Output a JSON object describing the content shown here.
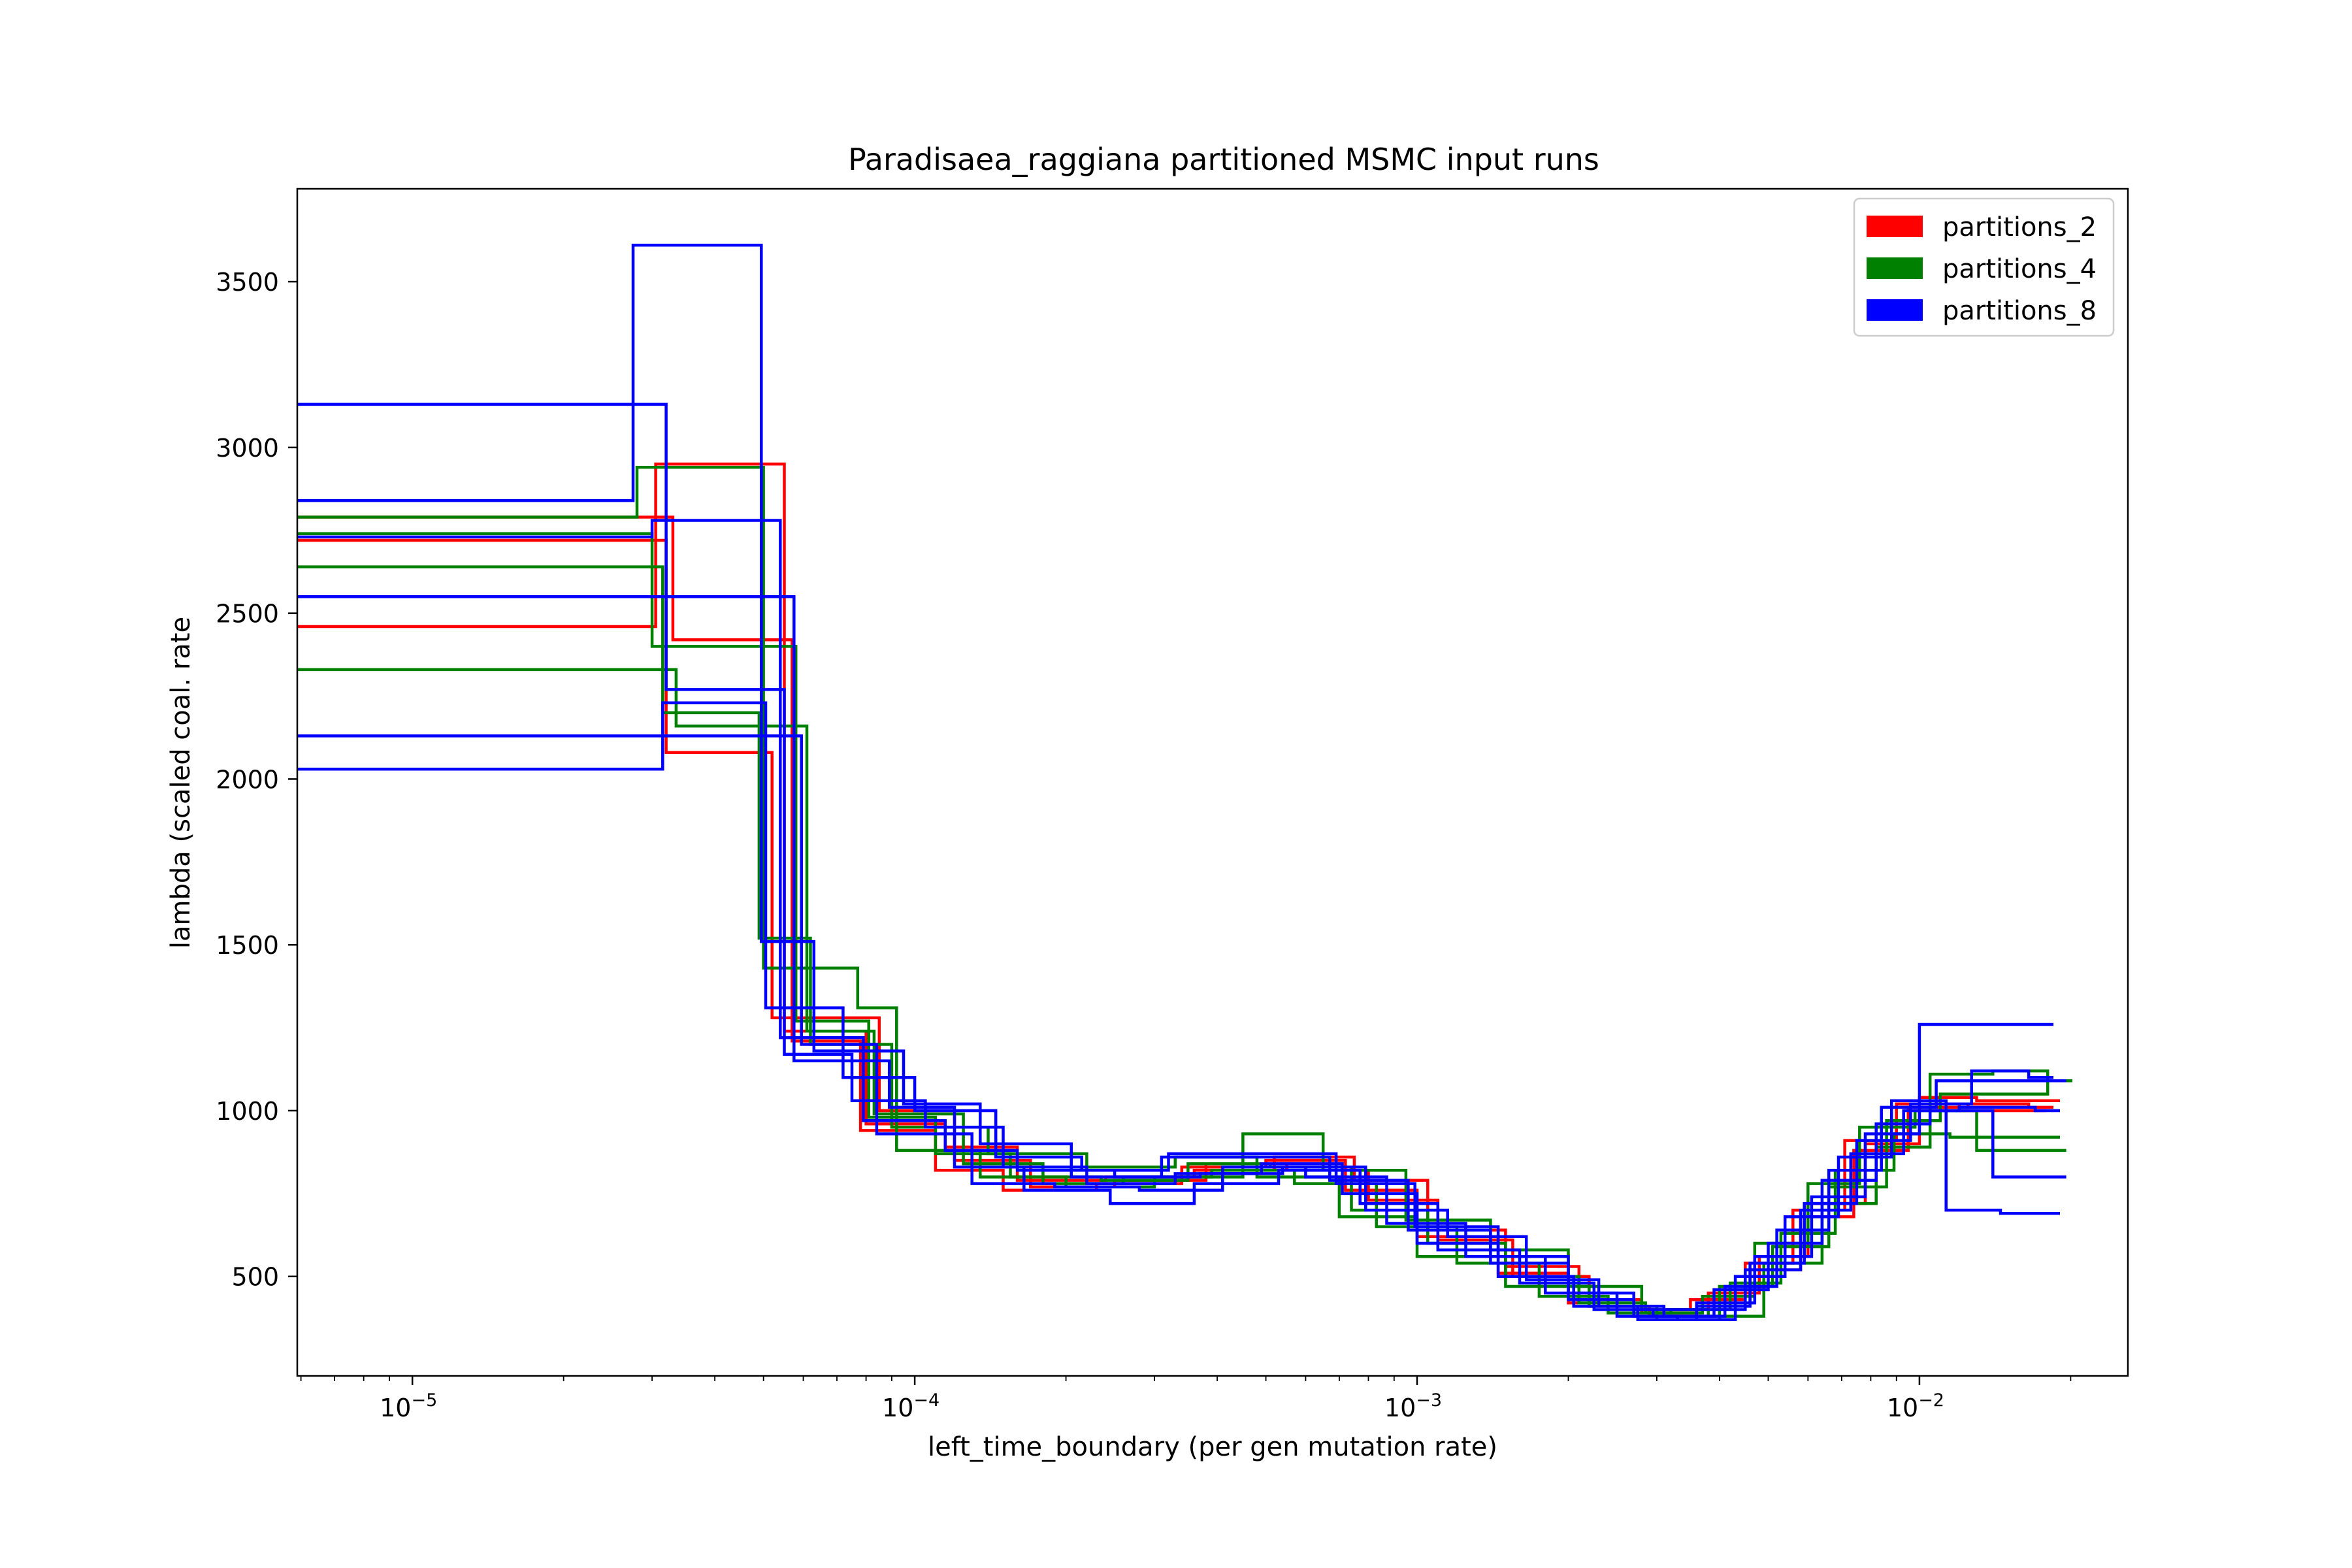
{
  "chart_data": {
    "type": "line",
    "title": "Paradisaea_raggiana partitioned MSMC input runs",
    "xlabel": "left_time_boundary (per gen mutation rate)",
    "ylabel": "lambda (scaled coal. rate",
    "xscale": "log",
    "xlim": [
      5.9e-06,
      0.026
    ],
    "ylim": [
      200,
      3780
    ],
    "grid": false,
    "legend_position": "top-right",
    "x_ticks": [
      {
        "value": 1e-05,
        "base": "10",
        "exp": "−5"
      },
      {
        "value": 0.0001,
        "base": "10",
        "exp": "−4"
      },
      {
        "value": 0.001,
        "base": "10",
        "exp": "−3"
      },
      {
        "value": 0.01,
        "base": "10",
        "exp": "−2"
      }
    ],
    "y_ticks": [
      {
        "value": 500,
        "label": "500"
      },
      {
        "value": 1000,
        "label": "1000"
      },
      {
        "value": 1500,
        "label": "1500"
      },
      {
        "value": 2000,
        "label": "2000"
      },
      {
        "value": 2500,
        "label": "2500"
      },
      {
        "value": 3000,
        "label": "3000"
      },
      {
        "value": 3500,
        "label": "3500"
      }
    ],
    "groups": [
      {
        "name": "partitions_2",
        "color": "#ff0000"
      },
      {
        "name": "partitions_4",
        "color": "#008000"
      },
      {
        "name": "partitions_8",
        "color": "#0000ff"
      }
    ],
    "series": [
      {
        "group": "partitions_2",
        "x": [
          5.9e-06,
          3.05e-05,
          5.5e-05,
          8e-05,
          0.000115,
          0.00016,
          0.00024,
          0.00036,
          0.00052,
          0.00075,
          0.00105,
          0.0015,
          0.0021,
          0.0028,
          0.0036,
          0.0046,
          0.0058,
          0.0074,
          0.0095,
          0.0125,
          0.0165
        ],
        "y": [
          2460,
          2950,
          1240,
          960,
          890,
          790,
          800,
          820,
          860,
          790,
          640,
          530,
          430,
          390,
          420,
          520,
          680,
          880,
          1010,
          1020,
          1010
        ]
      },
      {
        "group": "partitions_2",
        "x": [
          5.9e-06,
          3.2e-05,
          5.2e-05,
          8.5e-05,
          0.00012,
          0.00017,
          0.00025,
          0.00038,
          0.00055,
          0.0008,
          0.0011,
          0.00155,
          0.0022,
          0.0029,
          0.0038,
          0.0048,
          0.006,
          0.0078,
          0.01,
          0.013,
          0.017
        ],
        "y": [
          2720,
          2080,
          1280,
          1000,
          850,
          770,
          790,
          840,
          820,
          730,
          610,
          500,
          410,
          380,
          450,
          560,
          720,
          900,
          1040,
          1030,
          1030
        ]
      },
      {
        "group": "partitions_2",
        "x": [
          5.9e-06,
          3.3e-05,
          5.7e-05,
          7.8e-05,
          0.00011,
          0.00015,
          0.00023,
          0.00034,
          0.0005,
          0.00072,
          0.001,
          0.00145,
          0.002,
          0.0027,
          0.0035,
          0.0045,
          0.0056,
          0.0071,
          0.009,
          0.012,
          0.016
        ],
        "y": [
          2790,
          2420,
          1210,
          940,
          820,
          760,
          780,
          830,
          850,
          760,
          620,
          510,
          420,
          400,
          430,
          540,
          700,
          910,
          1020,
          1000,
          1000
        ]
      },
      {
        "group": "partitions_4",
        "x": [
          5.9e-06,
          2.8e-05,
          5e-05,
          7.7e-05,
          9.2e-05,
          0.000135,
          0.0002,
          0.0003,
          0.00045,
          0.00065,
          0.00095,
          0.0014,
          0.002,
          0.0028,
          0.0038,
          0.0049,
          0.0064,
          0.0082,
          0.0105,
          0.014,
          0.018
        ],
        "y": [
          2790,
          2940,
          1430,
          1310,
          880,
          800,
          770,
          800,
          930,
          820,
          670,
          580,
          470,
          400,
          380,
          540,
          720,
          890,
          1110,
          1120,
          1090
        ]
      },
      {
        "group": "partitions_4",
        "x": [
          5.9e-06,
          3.15e-05,
          4.9e-05,
          6.2e-05,
          9e-05,
          0.00014,
          0.00022,
          0.00033,
          0.00048,
          0.0007,
          0.001,
          0.0015,
          0.0022,
          0.003,
          0.004,
          0.0051,
          0.0066,
          0.0086,
          0.011,
          0.015,
          0.018
        ],
        "y": [
          2640,
          2200,
          1520,
          1200,
          950,
          870,
          830,
          860,
          800,
          680,
          560,
          470,
          410,
          370,
          470,
          590,
          770,
          970,
          1050,
          1050,
          1090
        ]
      },
      {
        "group": "partitions_4",
        "x": [
          5.9e-06,
          3.35e-05,
          6.1e-05,
          8.3e-05,
          0.000125,
          0.00018,
          0.00026,
          0.00039,
          0.00057,
          0.00083,
          0.0012,
          0.00175,
          0.0024,
          0.0032,
          0.0042,
          0.0053,
          0.0068,
          0.0089,
          0.0115,
          0.015,
          0.017
        ],
        "y": [
          2330,
          2160,
          1240,
          990,
          840,
          780,
          800,
          820,
          780,
          650,
          540,
          440,
          390,
          400,
          480,
          630,
          820,
          930,
          920,
          920,
          920
        ]
      },
      {
        "group": "partitions_4",
        "x": [
          5.9e-06,
          3e-05,
          5.8e-05,
          8.1e-05,
          0.00011,
          0.000155,
          0.000235,
          0.00035,
          0.00051,
          0.00074,
          0.00105,
          0.0015,
          0.0021,
          0.00285,
          0.0037,
          0.0047,
          0.006,
          0.0076,
          0.0098,
          0.013,
          0.0175
        ],
        "y": [
          2740,
          2400,
          1270,
          980,
          870,
          800,
          790,
          840,
          830,
          700,
          600,
          500,
          420,
          390,
          440,
          600,
          780,
          950,
          1000,
          880,
          880
        ]
      },
      {
        "group": "partitions_8",
        "x": [
          5.9e-06,
          2.75e-05,
          4.95e-05,
          6.3e-05,
          9.5e-05,
          0.000135,
          0.000205,
          0.00031,
          0.00046,
          0.00067,
          0.00096,
          0.0014,
          0.002,
          0.0027,
          0.0036,
          0.0046,
          0.0059,
          0.0075,
          0.0096,
          0.0127,
          0.0165
        ],
        "y": [
          2840,
          3610,
          1510,
          1180,
          1020,
          900,
          800,
          860,
          860,
          790,
          640,
          540,
          430,
          380,
          410,
          540,
          720,
          910,
          1020,
          1120,
          1100
        ]
      },
      {
        "group": "partitions_8",
        "x": [
          5.9e-06,
          3.2e-05,
          5.5e-05,
          7.5e-05,
          0.000105,
          0.00015,
          0.00022,
          0.00033,
          0.00049,
          0.00071,
          0.001,
          0.00145,
          0.00205,
          0.00275,
          0.0036,
          0.0047,
          0.0061,
          0.0078,
          0.01,
          0.013,
          0.0165
        ],
        "y": [
          3130,
          2270,
          1170,
          1030,
          950,
          830,
          780,
          810,
          840,
          750,
          600,
          500,
          410,
          370,
          420,
          560,
          740,
          930,
          1260,
          1260,
          1260
        ]
      },
      {
        "group": "partitions_8",
        "x": [
          5.9e-06,
          3.1e-05,
          5.75e-05,
          8.9e-05,
          0.00012,
          0.000165,
          0.000245,
          0.00036,
          0.00053,
          0.00077,
          0.0011,
          0.0016,
          0.00225,
          0.00295,
          0.0039,
          0.005,
          0.0064,
          0.0082,
          0.0105,
          0.014,
          0.0175
        ],
        "y": [
          2550,
          2550,
          1150,
          1010,
          830,
          760,
          720,
          780,
          820,
          720,
          580,
          480,
          400,
          380,
          460,
          600,
          790,
          960,
          1000,
          800,
          800
        ]
      },
      {
        "group": "partitions_8",
        "x": [
          5.9e-06,
          3.3e-05,
          5.95e-05,
          8.4e-05,
          0.00013,
          0.00019,
          0.00028,
          0.00041,
          0.0006,
          0.00087,
          0.00125,
          0.0018,
          0.0025,
          0.0033,
          0.0043,
          0.0054,
          0.0069,
          0.0088,
          0.0113,
          0.0145,
          0.017
        ],
        "y": [
          2130,
          2130,
          1200,
          930,
          780,
          770,
          760,
          830,
          800,
          660,
          560,
          450,
          380,
          370,
          500,
          680,
          860,
          1030,
          700,
          690,
          690
        ]
      },
      {
        "group": "partitions_8",
        "x": [
          5.9e-06,
          3.15e-05,
          5.05e-05,
          7.2e-05,
          0.0001,
          0.000145,
          0.000215,
          0.00032,
          0.00047,
          0.00069,
          0.00099,
          0.00145,
          0.002,
          0.0027,
          0.0035,
          0.0045,
          0.0058,
          0.0073,
          0.0093,
          0.012,
          0.017
        ],
        "y": [
          2030,
          2230,
          1310,
          1100,
          1000,
          860,
          820,
          870,
          870,
          780,
          650,
          560,
          450,
          400,
          400,
          520,
          700,
          870,
          1000,
          1010,
          1000
        ]
      },
      {
        "group": "partitions_8",
        "x": [
          5.9e-06,
          3e-05,
          5.4e-05,
          7.9e-05,
          0.000115,
          0.00016,
          0.00025,
          0.00037,
          0.00054,
          0.00079,
          0.00115,
          0.00165,
          0.0023,
          0.0031,
          0.0041,
          0.0052,
          0.0066,
          0.0084,
          0.0108,
          0.0145,
          0.0175
        ],
        "y": [
          2730,
          2780,
          1220,
          970,
          880,
          820,
          800,
          810,
          830,
          700,
          620,
          490,
          410,
          380,
          470,
          640,
          820,
          1010,
          1090,
          1090,
          1090
        ]
      }
    ]
  }
}
